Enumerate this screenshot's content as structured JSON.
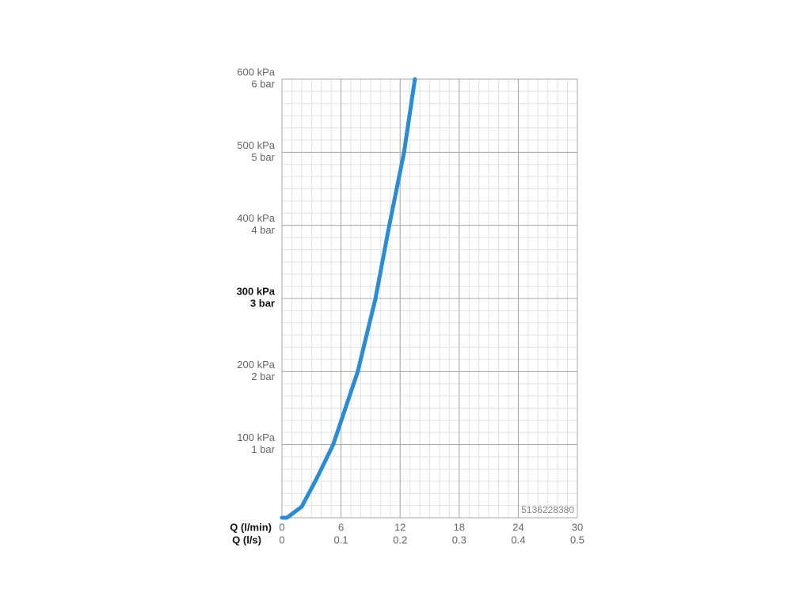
{
  "chart_data": {
    "type": "line",
    "x": [
      0,
      0.5,
      2,
      3.5,
      5.2,
      7.7,
      9.5,
      10.9,
      12.4,
      13.5
    ],
    "series": [
      {
        "color": "#2a8bd6",
        "values": [
          0,
          0,
          15,
          53,
          100,
          200,
          300,
          400,
          500,
          600
        ]
      }
    ],
    "xlim": [
      0,
      30
    ],
    "xticks": [
      0,
      6,
      12,
      18,
      24,
      30
    ],
    "xlabel": "Q (l/min)",
    "x2lim": [
      0,
      0.5
    ],
    "x2ticks": [
      0,
      0.1,
      0.2,
      0.3,
      0.4,
      0.5
    ],
    "x2label": "Q (l/s)",
    "ylim": [
      0,
      600
    ],
    "yticks": [
      {
        "value": 100,
        "label": "100 kPa"
      },
      {
        "value": 200,
        "label": "200 kPa"
      },
      {
        "value": 300,
        "label": "300 kPa"
      },
      {
        "value": 400,
        "label": "400 kPa"
      },
      {
        "value": 500,
        "label": "500 kPa"
      },
      {
        "value": 600,
        "label": "600 kPa"
      }
    ],
    "ytick_sublabels": [
      "1 bar",
      "2 bar",
      "3 bar",
      "4 bar",
      "5 bar",
      "6 bar"
    ],
    "bold_ytick": 300,
    "grid": true,
    "annotation": "5136228380"
  }
}
